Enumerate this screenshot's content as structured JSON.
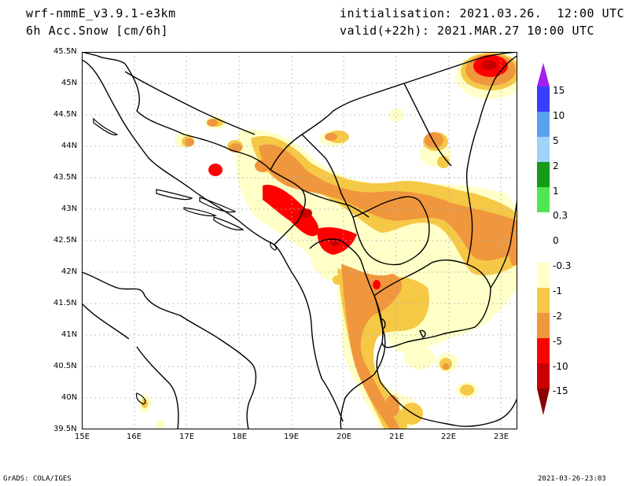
{
  "header": {
    "model": "wrf-nmmE_v3.9.1-e3km",
    "variable": "6h Acc.Snow [cm/6h]",
    "init": "initialisation: 2021.03.26.  12:00 UTC",
    "valid": "valid(+22h): 2021.MAR.27 10:00 UTC"
  },
  "axes": {
    "lat_ticks": [
      "45.5N",
      "45N",
      "44.5N",
      "44N",
      "43.5N",
      "43N",
      "42.5N",
      "42N",
      "41.5N",
      "41N",
      "40.5N",
      "40N",
      "39.5N"
    ],
    "lon_ticks": [
      "15E",
      "16E",
      "17E",
      "18E",
      "19E",
      "20E",
      "21E",
      "22E",
      "23E"
    ],
    "lat_range": [
      39.5,
      45.5
    ],
    "lon_range": [
      15.0,
      23.3
    ],
    "grid": true
  },
  "colorbar": {
    "labels": [
      "15",
      "10",
      "5",
      "2",
      "1",
      "0.3",
      "0",
      "-0.3",
      "-1",
      "-2",
      "-5",
      "-10",
      "-15"
    ],
    "colors": [
      "#a020f0",
      "#3c3cff",
      "#5aa0f0",
      "#a0d2fa",
      "#169b16",
      "#50e650",
      "#78fa78",
      "#ffffff",
      "#ffffc8",
      "#f5c846",
      "#f0963c",
      "#ff0000",
      "#c80000",
      "#8b0000"
    ]
  },
  "footer": {
    "left": "GrADS: COLA/IGES",
    "right": "2021-03-26-23:03"
  }
}
